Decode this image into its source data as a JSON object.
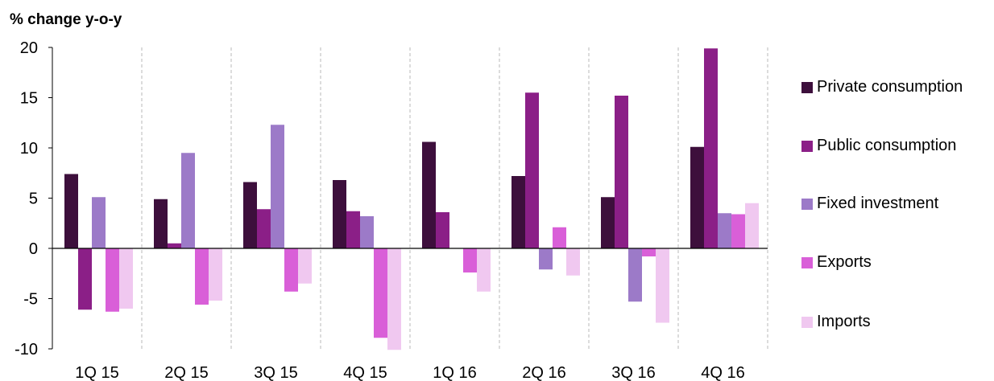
{
  "chart_data": {
    "type": "bar",
    "ylabel": "% change y-o-y",
    "ylim": [
      -10,
      20
    ],
    "yticks": [
      20,
      15,
      10,
      5,
      0,
      -5,
      -10
    ],
    "categories": [
      "1Q 15",
      "2Q 15",
      "3Q 15",
      "4Q 15",
      "1Q 16",
      "2Q 16",
      "3Q 16",
      "4Q 16"
    ],
    "grid": "vertical dashed category separators",
    "legend_position": "right",
    "series": [
      {
        "name": "Private consumption",
        "color": "#3d0f3c",
        "values": [
          7.4,
          4.9,
          6.6,
          6.8,
          10.6,
          7.2,
          5.1,
          10.1
        ]
      },
      {
        "name": "Public consumption",
        "color": "#8b1f87",
        "values": [
          -6.1,
          0.5,
          3.9,
          3.7,
          3.6,
          15.5,
          15.2,
          19.9
        ]
      },
      {
        "name": "Fixed investment",
        "color": "#9c7ac8",
        "values": [
          5.1,
          9.5,
          12.3,
          3.2,
          0,
          -2.1,
          -5.3,
          3.5
        ]
      },
      {
        "name": "Exports",
        "color": "#d95fd8",
        "values": [
          -6.3,
          -5.6,
          -4.3,
          -8.9,
          -2.4,
          2.1,
          -0.8,
          3.4
        ]
      },
      {
        "name": "Imports",
        "color": "#f0c8f0",
        "values": [
          -6.0,
          -5.2,
          -3.5,
          -10.1,
          -4.3,
          -2.7,
          -7.4,
          4.5
        ]
      }
    ]
  }
}
